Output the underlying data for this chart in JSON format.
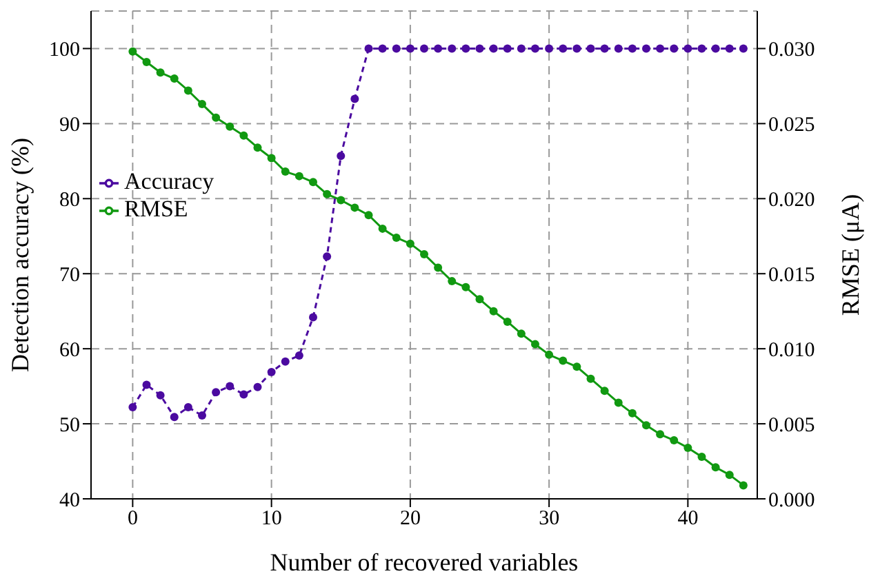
{
  "chart_data": {
    "type": "line",
    "xlabel": "Number of recovered variables",
    "ylabel": "Detection accuracy (%)",
    "y2label": "RMSE (μA)",
    "x": [
      0,
      1,
      2,
      3,
      4,
      5,
      6,
      7,
      8,
      9,
      10,
      11,
      12,
      13,
      14,
      15,
      16,
      17,
      18,
      19,
      20,
      21,
      22,
      23,
      24,
      25,
      26,
      27,
      28,
      29,
      30,
      31,
      32,
      33,
      34,
      35,
      36,
      37,
      38,
      39,
      40,
      41,
      42,
      43,
      44
    ],
    "series": [
      {
        "name": "Accuracy",
        "color": "#4b0aa0",
        "line_style": "dashed",
        "values": [
          52.2,
          55.2,
          53.8,
          50.9,
          52.2,
          51.1,
          54.2,
          55.0,
          53.9,
          54.9,
          56.9,
          58.3,
          59.1,
          64.2,
          72.3,
          85.7,
          93.3,
          100,
          100,
          100,
          100,
          100,
          100,
          100,
          100,
          100,
          100,
          100,
          100,
          100,
          100,
          100,
          100,
          100,
          100,
          100,
          100,
          100,
          100,
          100,
          100,
          100,
          100,
          100,
          100
        ]
      },
      {
        "name": "RMSE",
        "color": "#119911",
        "line_style": "solid",
        "axis": "y2",
        "values": [
          0.0298,
          0.0291,
          0.0284,
          0.028,
          0.0272,
          0.0263,
          0.0254,
          0.0248,
          0.0242,
          0.0234,
          0.0227,
          0.0218,
          0.0215,
          0.0211,
          0.0203,
          0.0199,
          0.0194,
          0.0189,
          0.018,
          0.0174,
          0.017,
          0.0163,
          0.0154,
          0.0145,
          0.0141,
          0.0133,
          0.0125,
          0.0118,
          0.011,
          0.0103,
          0.0096,
          0.0092,
          0.0088,
          0.008,
          0.0072,
          0.0064,
          0.0057,
          0.0049,
          0.0043,
          0.0039,
          0.0034,
          0.0028,
          0.0021,
          0.0016,
          0.0009
        ]
      }
    ],
    "xlim": [
      -3,
      45
    ],
    "xticks": [
      0,
      10,
      20,
      30,
      40
    ],
    "ylim": [
      40,
      105
    ],
    "yticks": [
      40,
      50,
      60,
      70,
      80,
      90,
      100
    ],
    "y2lim": [
      0,
      0.0325
    ],
    "y2ticks": [
      {
        "value": 0,
        "label": "0.000"
      },
      {
        "value": 0.005,
        "label": "0.005"
      },
      {
        "value": 0.01,
        "label": "0.010"
      },
      {
        "value": 0.015,
        "label": "0.015"
      },
      {
        "value": 0.02,
        "label": "0.020"
      },
      {
        "value": 0.025,
        "label": "0.025"
      },
      {
        "value": 0.03,
        "label": "0.030"
      }
    ],
    "grid": true,
    "legend": "left",
    "marker": "circle"
  }
}
